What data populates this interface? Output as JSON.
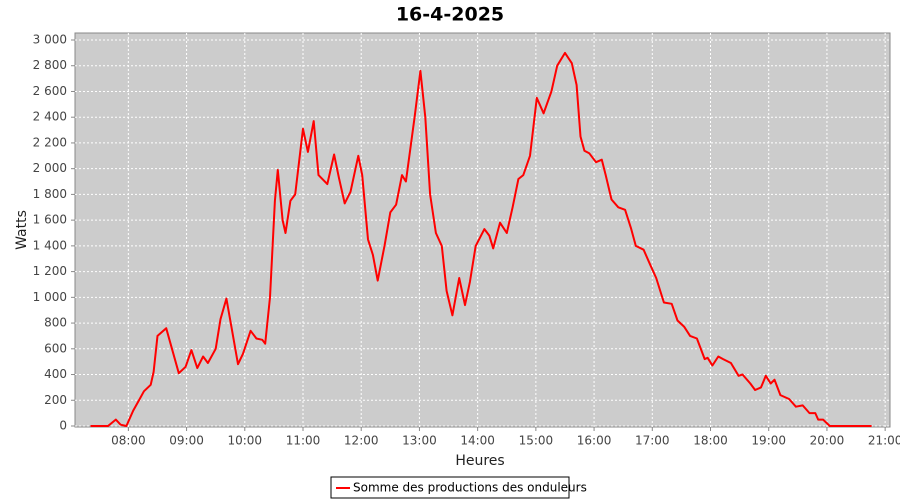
{
  "chart_data": {
    "type": "line",
    "title": "16-4-2025",
    "x_label": "Heures",
    "y_label": "Watts",
    "x": [
      "07:21",
      "07:31",
      "07:39",
      "07:47",
      "07:52",
      "07:58",
      "08:05",
      "08:11",
      "08:16",
      "08:23",
      "08:26",
      "08:30",
      "08:39",
      "08:52",
      "08:59",
      "09:05",
      "09:11",
      "09:17",
      "09:22",
      "09:30",
      "09:35",
      "09:41",
      "09:46",
      "09:53",
      "09:58",
      "10:06",
      "10:12",
      "10:18",
      "10:21",
      "10:26",
      "10:31",
      "10:34",
      "10:39",
      "10:42",
      "10:47",
      "10:52",
      "11:00",
      "11:05",
      "11:11",
      "11:16",
      "11:25",
      "11:32",
      "11:37",
      "11:43",
      "11:49",
      "11:57",
      "12:01",
      "12:07",
      "12:12",
      "12:17",
      "12:24",
      "12:30",
      "12:36",
      "12:42",
      "12:46",
      "12:55",
      "13:01",
      "13:06",
      "13:11",
      "13:17",
      "13:23",
      "13:28",
      "13:34",
      "13:41",
      "13:47",
      "13:52",
      "13:58",
      "14:07",
      "14:12",
      "14:16",
      "14:23",
      "14:30",
      "14:36",
      "14:42",
      "14:47",
      "14:54",
      "15:01",
      "15:08",
      "15:16",
      "15:22",
      "15:30",
      "15:37",
      "15:42",
      "15:46",
      "15:50",
      "15:55",
      "16:02",
      "16:08",
      "16:12",
      "16:18",
      "16:25",
      "16:32",
      "16:38",
      "16:43",
      "16:51",
      "16:58",
      "17:04",
      "17:12",
      "17:20",
      "17:26",
      "17:33",
      "17:39",
      "17:46",
      "17:54",
      "17:57",
      "18:02",
      "18:08",
      "18:13",
      "18:21",
      "18:29",
      "18:33",
      "18:41",
      "18:46",
      "18:52",
      "18:57",
      "19:02",
      "19:06",
      "19:12",
      "19:21",
      "19:28",
      "19:35",
      "19:42",
      "19:48",
      "19:51",
      "19:56",
      "20:03",
      "20:14",
      "20:24",
      "20:34",
      "20:46"
    ],
    "series": [
      {
        "name": "Somme des productions des onduleurs",
        "color": "#ff0000",
        "values": [
          0,
          0,
          0,
          50,
          10,
          0,
          120,
          200,
          270,
          320,
          420,
          700,
          760,
          410,
          460,
          590,
          450,
          540,
          490,
          600,
          830,
          990,
          780,
          480,
          560,
          740,
          680,
          670,
          640,
          1000,
          1750,
          1990,
          1600,
          1500,
          1750,
          1800,
          2310,
          2130,
          2370,
          1950,
          1880,
          2110,
          1930,
          1730,
          1820,
          2100,
          1950,
          1450,
          1330,
          1130,
          1400,
          1660,
          1720,
          1950,
          1900,
          2400,
          2760,
          2400,
          1800,
          1500,
          1400,
          1050,
          860,
          1150,
          940,
          1120,
          1400,
          1530,
          1480,
          1380,
          1580,
          1500,
          1700,
          1920,
          1950,
          2100,
          2550,
          2430,
          2600,
          2800,
          2900,
          2820,
          2650,
          2250,
          2140,
          2120,
          2050,
          2070,
          1950,
          1760,
          1700,
          1680,
          1540,
          1400,
          1370,
          1250,
          1150,
          960,
          950,
          820,
          770,
          700,
          680,
          520,
          530,
          470,
          540,
          520,
          490,
          390,
          400,
          330,
          280,
          300,
          390,
          330,
          360,
          240,
          210,
          150,
          160,
          100,
          100,
          50,
          50,
          0,
          0,
          0,
          0,
          0
        ]
      }
    ],
    "xlim": [
      "07:05",
      "21:05"
    ],
    "xticks": [
      "08:00",
      "09:00",
      "10:00",
      "11:00",
      "12:00",
      "13:00",
      "14:00",
      "15:00",
      "16:00",
      "17:00",
      "18:00",
      "19:00",
      "20:00",
      "21:00"
    ],
    "ylim": [
      0,
      3000
    ],
    "yticks": [
      0,
      200,
      400,
      600,
      800,
      {
        "value": 1000,
        "label": "1 000"
      },
      {
        "value": 1200,
        "label": "1 200"
      },
      {
        "value": 1400,
        "label": "1 400"
      },
      {
        "value": 1600,
        "label": "1 600"
      },
      {
        "value": 1800,
        "label": "1 800"
      },
      {
        "value": 2000,
        "label": "2 000"
      },
      {
        "value": 2200,
        "label": "2 200"
      },
      {
        "value": 2400,
        "label": "2 400"
      },
      {
        "value": 2600,
        "label": "2 600"
      },
      {
        "value": 2800,
        "label": "2 800"
      },
      {
        "value": 3000,
        "label": "3 000"
      }
    ],
    "grid": true
  }
}
